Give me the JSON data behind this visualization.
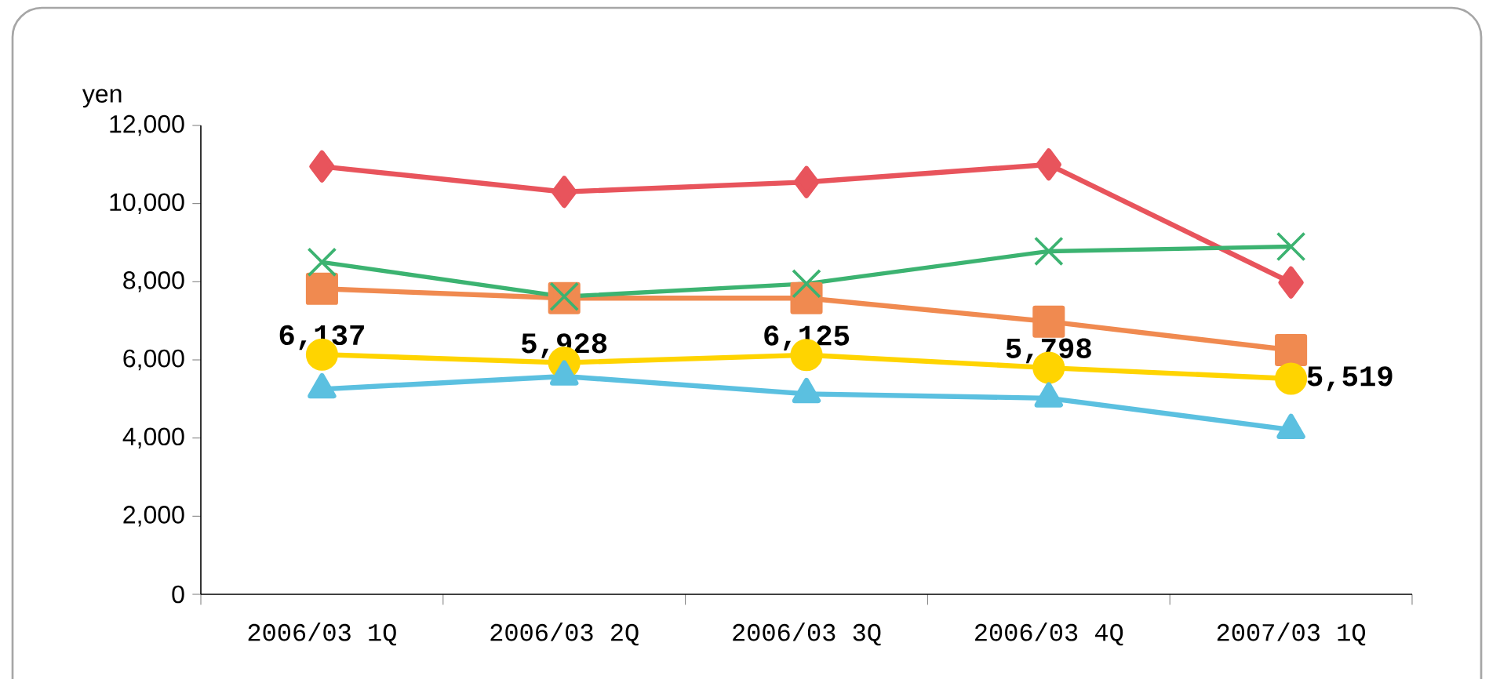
{
  "chart_data": {
    "type": "line",
    "ylabel": "yen",
    "categories": [
      "2006/03 1Q",
      "2006/03 2Q",
      "2006/03 3Q",
      "2006/03 4Q",
      "2007/03 1Q"
    ],
    "series": [
      {
        "color": "#e8545c",
        "marker": "diamond",
        "values": [
          10950,
          10300,
          10550,
          11000,
          7980
        ]
      },
      {
        "color": "#f08a50",
        "marker": "square",
        "values": [
          7820,
          7580,
          7580,
          6980,
          6250
        ]
      },
      {
        "color": "#3cb371",
        "marker": "cross",
        "values": [
          8500,
          7620,
          7950,
          8780,
          8900
        ]
      },
      {
        "color": "#ffd400",
        "marker": "circle",
        "values": [
          6137,
          5928,
          6125,
          5798,
          5519
        ],
        "value_labels": [
          "6,137",
          "5,928",
          "6,125",
          "5,798",
          "5,519"
        ]
      },
      {
        "color": "#5bc0e0",
        "marker": "triangle",
        "values": [
          5250,
          5580,
          5130,
          5020,
          4210
        ]
      }
    ],
    "ylim": [
      0,
      12000
    ],
    "yticks": [
      {
        "value": 0,
        "label": "0"
      },
      {
        "value": 2000,
        "label": "2,000"
      },
      {
        "value": 4000,
        "label": "4,000"
      },
      {
        "value": 6000,
        "label": "6,000"
      },
      {
        "value": 8000,
        "label": "8,000"
      },
      {
        "value": 10000,
        "label": "10,000"
      },
      {
        "value": 12000,
        "label": "12,000"
      }
    ],
    "grid": false,
    "line_style": "solid"
  }
}
